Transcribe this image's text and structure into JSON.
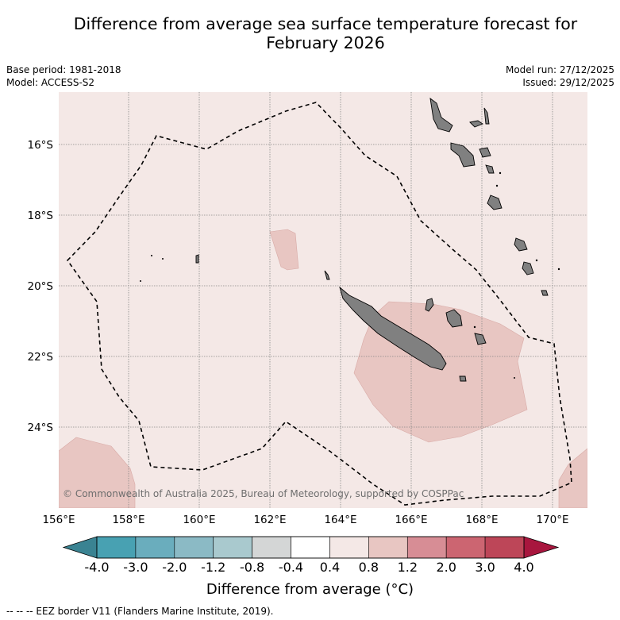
{
  "title_line1": "Difference from average sea surface temperature forecast for",
  "title_line2": "February 2026",
  "meta_left": {
    "base_period": "Base period: 1981-2018",
    "model": "Model: ACCESS-S2"
  },
  "meta_right": {
    "model_run": "Model run: 27/12/2025",
    "issued": "Issued: 29/12/2025"
  },
  "map": {
    "background_color": "#f4e8e6",
    "longitudes": [
      "156°E",
      "158°E",
      "160°E",
      "162°E",
      "164°E",
      "166°E",
      "168°E",
      "170°E"
    ],
    "latitudes": [
      "16°S",
      "18°S",
      "20°S",
      "22°S",
      "24°S"
    ],
    "copyright": "© Commonwealth of Australia 2025, Bureau of Meteorology, supported by COSPPac",
    "land_color": "#808080",
    "anomaly_patch_color": "#e8c6c2"
  },
  "colorbar": {
    "labels": [
      "-4.0",
      "-3.0",
      "-2.0",
      "-1.2",
      "-0.8",
      "-0.4",
      "0.4",
      "0.8",
      "1.2",
      "2.0",
      "3.0",
      "4.0"
    ],
    "colors": [
      "#48a1b2",
      "#6aadbd",
      "#8bbac5",
      "#a9c9ce",
      "#d4d6d6",
      "#ffffff",
      "#f4e8e6",
      "#e8c6c2",
      "#d78d95",
      "#cc6571",
      "#bd4658"
    ],
    "low_extend_color": "#3a8392",
    "high_extend_color": "#a8163e",
    "title": "Difference from average (°C)"
  },
  "footnote": "--  --  -- EEZ border V11 (Flanders Marine Institute, 2019)."
}
